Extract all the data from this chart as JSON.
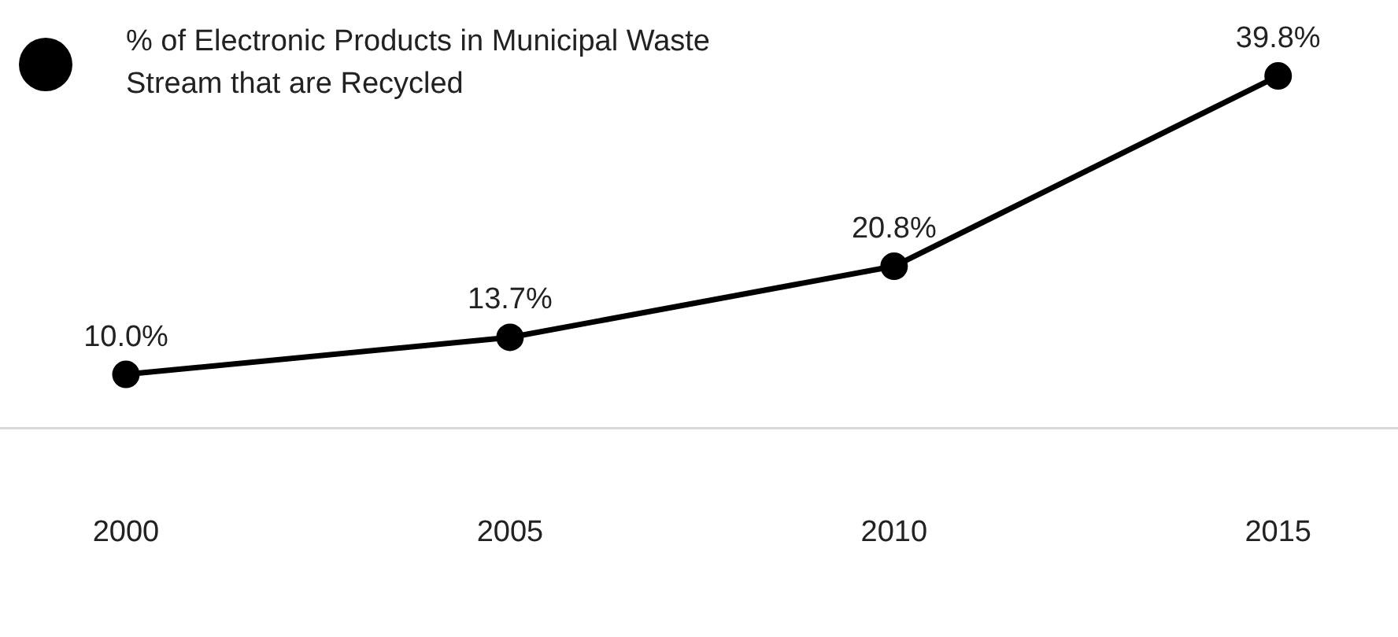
{
  "chart_data": {
    "type": "line",
    "categories": [
      "2000",
      "2005",
      "2010",
      "2015"
    ],
    "series": [
      {
        "name": "% of Electronic Products in Municipal Waste Stream that are Recycled",
        "color": "#000000",
        "values": [
          10.0,
          13.7,
          20.8,
          39.8
        ],
        "value_labels": [
          "10.0%",
          "13.7%",
          "20.8%",
          "39.8%"
        ]
      }
    ],
    "legend": "top left",
    "marker": "circle",
    "line_style": "solid",
    "grid": false,
    "tick_labels": "x"
  }
}
